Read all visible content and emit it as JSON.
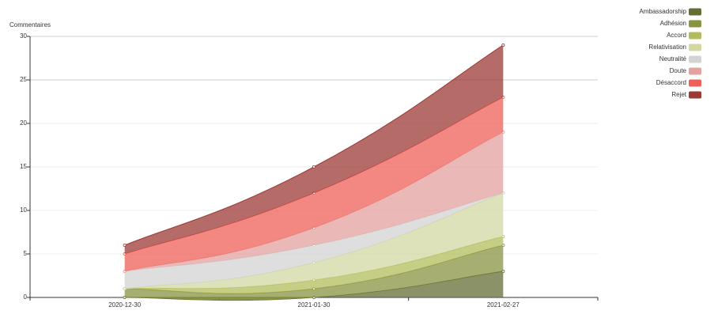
{
  "chart_data": {
    "type": "stacked-area",
    "y_label": "Commentaires",
    "categories": [
      "2020-12-30",
      "2021-01-30",
      "2021-02-27"
    ],
    "series": [
      {
        "name": "Ambassadorship",
        "color": "#666d35",
        "values": [
          0,
          0,
          3
        ]
      },
      {
        "name": "Adhésion",
        "color": "#8a9342",
        "values": [
          1,
          1,
          3
        ]
      },
      {
        "name": "Accord",
        "color": "#b3bc5c",
        "values": [
          0,
          1,
          1
        ]
      },
      {
        "name": "Relativisation",
        "color": "#d3d8a3",
        "values": [
          0,
          2,
          5
        ]
      },
      {
        "name": "Neutralité",
        "color": "#d3d3d3",
        "values": [
          2,
          2,
          0
        ]
      },
      {
        "name": "Doute",
        "color": "#e3a19f",
        "values": [
          0,
          2,
          7
        ]
      },
      {
        "name": "Désaccord",
        "color": "#ef605a",
        "values": [
          2,
          4,
          4
        ]
      },
      {
        "name": "Rejet",
        "color": "#9c3a35",
        "values": [
          1,
          3,
          6
        ]
      }
    ],
    "ylim": [
      0,
      30
    ],
    "yticks": [
      0,
      5,
      10,
      15,
      20,
      25,
      30
    ],
    "grid": true,
    "legend": "top-right"
  }
}
